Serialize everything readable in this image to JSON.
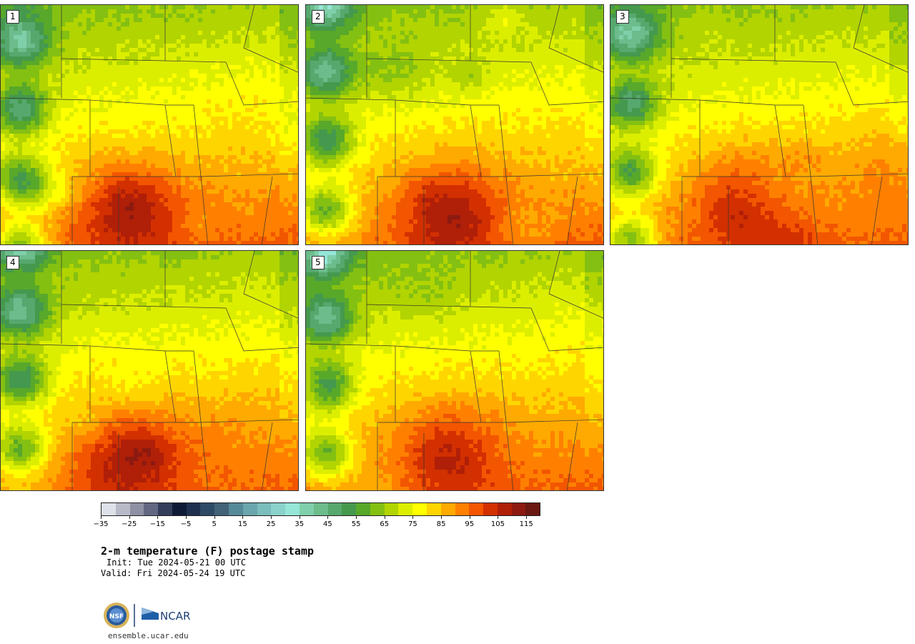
{
  "panels": [
    {
      "label": "1",
      "seed": 11,
      "hot": [
        0.42,
        0.82
      ],
      "heat": 1.0
    },
    {
      "label": "2",
      "seed": 27,
      "hot": [
        0.48,
        0.85
      ],
      "heat": 0.95
    },
    {
      "label": "3",
      "seed": 43,
      "hot": [
        0.45,
        0.8
      ],
      "heat": 1.0
    },
    {
      "label": "4",
      "seed": 59,
      "hot": [
        0.42,
        0.84
      ],
      "heat": 0.9
    },
    {
      "label": "5",
      "seed": 71,
      "hot": [
        0.47,
        0.82
      ],
      "heat": 0.8
    }
  ],
  "colorbar": {
    "colors": [
      "#dfe1e8",
      "#b8bac8",
      "#8e91a4",
      "#636882",
      "#343d5a",
      "#0e1a36",
      "#1e304e",
      "#2f4a66",
      "#426278",
      "#568a98",
      "#6aa6ad",
      "#7bbcbc",
      "#8bd2cc",
      "#96e6d8",
      "#7fcfaa",
      "#6cbc8c",
      "#56a86e",
      "#45994e",
      "#58a82a",
      "#84c012",
      "#b2d400",
      "#dcee00",
      "#ffff00",
      "#ffd500",
      "#ffaa00",
      "#ff8000",
      "#f25600",
      "#d23000",
      "#b01f08",
      "#8c1a10",
      "#6a1812"
    ],
    "min": -35,
    "max": 120,
    "ticks": [
      "−35",
      "−25",
      "−15",
      "−5",
      "5",
      "15",
      "25",
      "35",
      "45",
      "55",
      "65",
      "75",
      "85",
      "95",
      "105",
      "115"
    ],
    "tick_values": [
      -35,
      -25,
      -15,
      -5,
      5,
      15,
      25,
      35,
      45,
      55,
      65,
      75,
      85,
      95,
      105,
      115
    ]
  },
  "title": "2-m temperature (F) postage stamp",
  "init": "Init: Tue 2024-05-21 00 UTC",
  "valid": "Valid: Fri 2024-05-24 19 UTC",
  "logo": {
    "nsf": "NSF",
    "ncar": "NCAR"
  },
  "site": "ensemble.ucar.edu"
}
